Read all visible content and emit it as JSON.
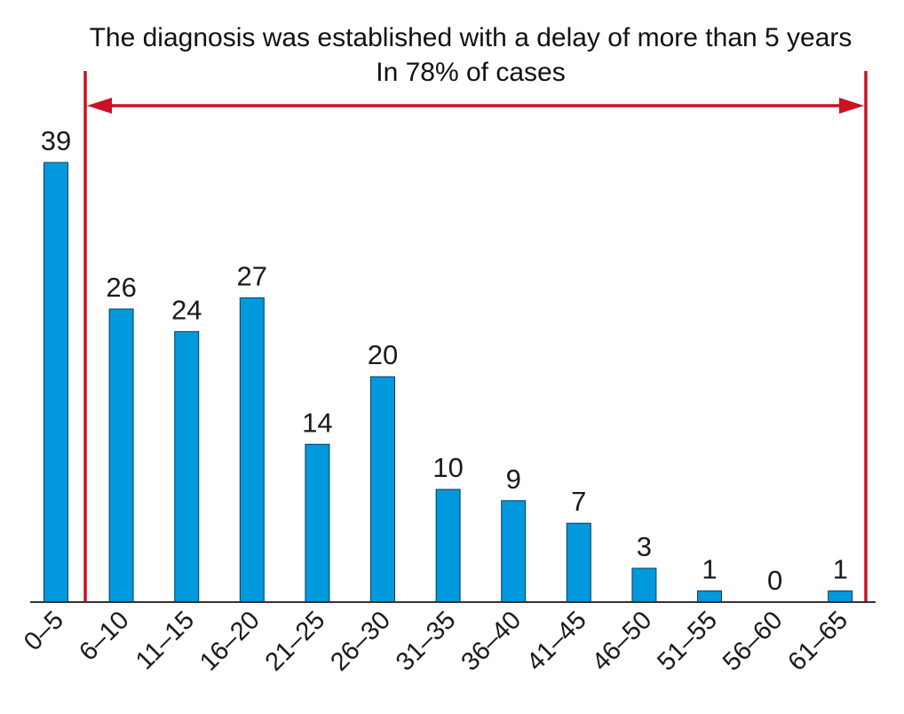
{
  "chart_data": {
    "type": "bar",
    "title": "The diagnosis was established with a delay of more than 5 years",
    "subtitle": "In 78% of cases",
    "categories": [
      "0–5",
      "6–10",
      "11–15",
      "16–20",
      "21–25",
      "26–30",
      "31–35",
      "36–40",
      "41–45",
      "46–50",
      "51–55",
      "56–60",
      "61–65"
    ],
    "values": [
      39,
      26,
      24,
      27,
      14,
      20,
      10,
      9,
      7,
      3,
      1,
      0,
      1
    ],
    "xlabel": "",
    "ylabel": "",
    "ylim": [
      0,
      39
    ],
    "grid": false,
    "bar_color": "#0099dd",
    "bar_edge_color": "#0a3a5a",
    "bracket_color": "#cc1122",
    "bracket_span": [
      "6–10",
      "61–65"
    ]
  }
}
